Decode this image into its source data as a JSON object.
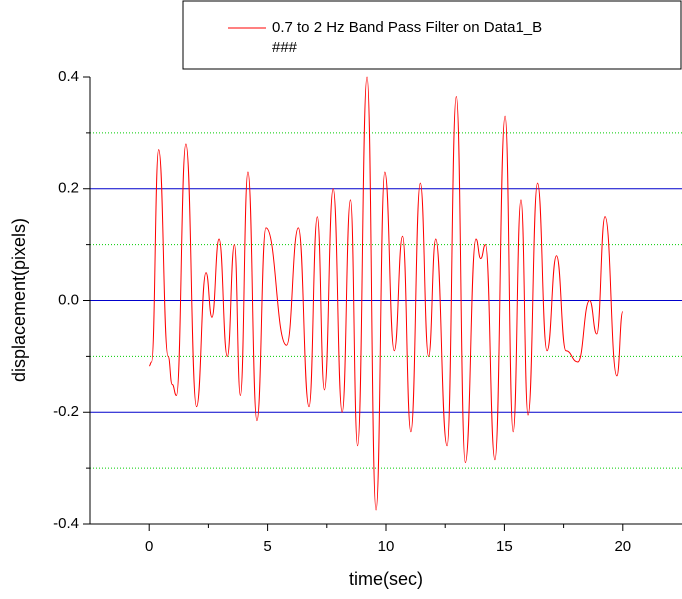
{
  "chart_data": {
    "type": "line",
    "x_label": "time(sec)",
    "y_label": "displacement(pixels)",
    "legend_note": "###",
    "xlim": [
      -2.5,
      22.5
    ],
    "ylim": [
      -0.4,
      0.4
    ],
    "xticks": [
      0,
      5,
      10,
      15,
      20
    ],
    "yticks": [
      -0.4,
      -0.2,
      {
        "value": 0,
        "label": "0.0"
      },
      0.2,
      0.4
    ],
    "minor_yticks": [
      -0.3,
      -0.1,
      0.1,
      0.3
    ],
    "grid": true,
    "grid_color": "#0000cc",
    "minor_grid_color": "#00cc00",
    "legend_position": "top",
    "series": [
      {
        "name": "0.7 to 2 Hz Band Pass Filter on Data1_B",
        "color": "#ff0000",
        "x": [
          0,
          0.1,
          0.4,
          0.8,
          0.97,
          1.15,
          1.55,
          2.0,
          2.4,
          2.65,
          2.95,
          3.3,
          3.6,
          3.85,
          4.17,
          4.55,
          4.93,
          5.8,
          6.3,
          6.75,
          7.1,
          7.4,
          7.77,
          8.15,
          8.5,
          8.8,
          9.2,
          9.58,
          9.95,
          10.35,
          10.7,
          11.05,
          11.45,
          11.8,
          12.1,
          12.58,
          12.97,
          13.35,
          13.8,
          14.0,
          14.2,
          14.6,
          15.03,
          15.37,
          15.7,
          16.0,
          16.4,
          16.8,
          17.2,
          17.6,
          18.1,
          18.6,
          18.9,
          19.25,
          19.75,
          20.0
        ],
        "values": [
          -0.117,
          -0.11,
          0.27,
          -0.1,
          -0.15,
          -0.17,
          0.28,
          -0.19,
          0.05,
          -0.03,
          0.11,
          -0.1,
          0.1,
          -0.17,
          0.23,
          -0.215,
          0.13,
          -0.08,
          0.13,
          -0.19,
          0.15,
          -0.16,
          0.2,
          -0.2,
          0.18,
          -0.26,
          0.4,
          -0.375,
          0.23,
          -0.09,
          0.115,
          -0.235,
          0.21,
          -0.1,
          0.11,
          -0.26,
          0.365,
          -0.29,
          0.11,
          0.075,
          0.1,
          -0.285,
          0.33,
          -0.235,
          0.18,
          -0.205,
          0.21,
          -0.09,
          0.08,
          -0.09,
          -0.11,
          0.0,
          -0.06,
          0.15,
          -0.135,
          -0.02
        ]
      }
    ]
  }
}
